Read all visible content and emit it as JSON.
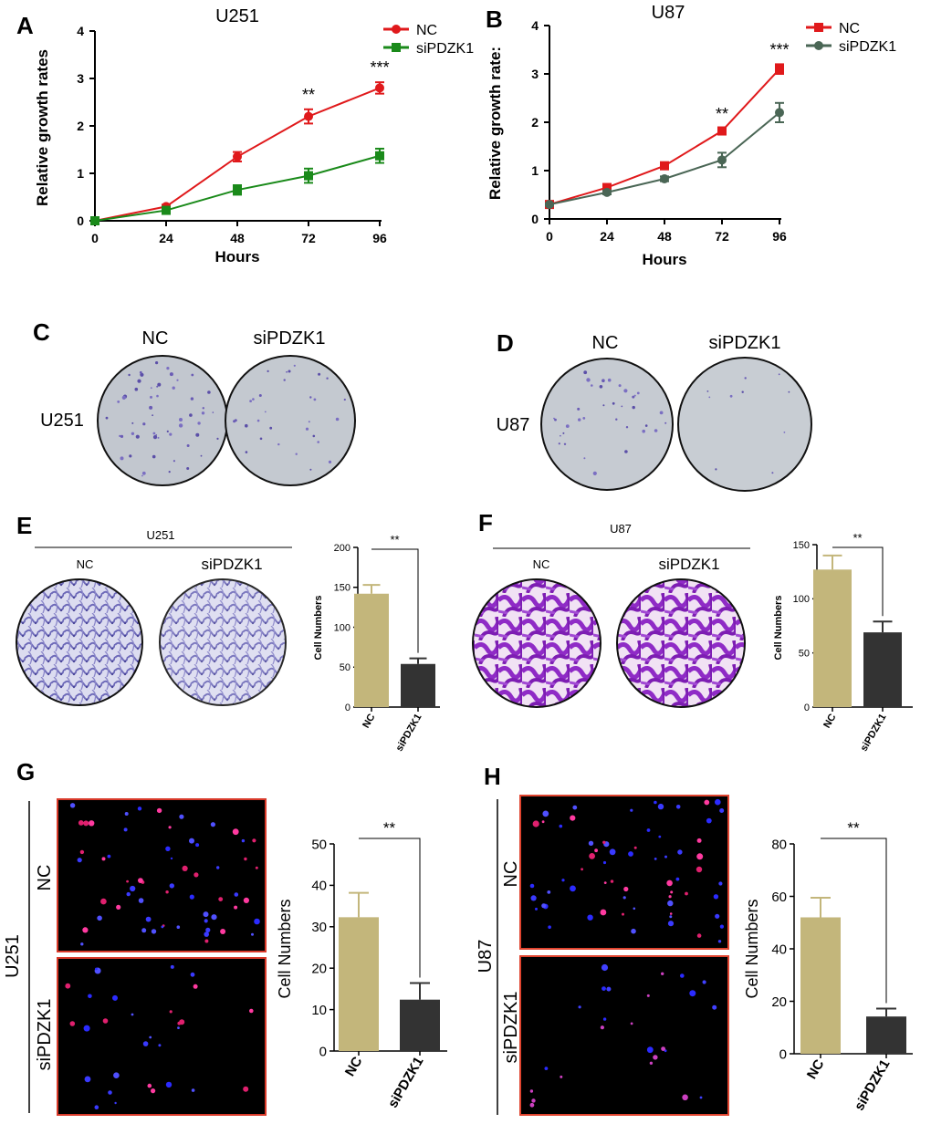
{
  "panel_letters": {
    "A": "A",
    "B": "B",
    "C": "C",
    "D": "D",
    "E": "E",
    "F": "F",
    "G": "G",
    "H": "H"
  },
  "colors": {
    "nc_line": "#e0191b",
    "si_green": "#1a8a1a",
    "si_gray": "#4a6655",
    "bar_nc": "#c3b67b",
    "bar_si": "#333333",
    "micro_border": "#d93a2a",
    "fluor_border": "#e0442f"
  },
  "panel_C": {
    "cell_line": "U251",
    "col_labels": [
      "NC",
      "siPDZK1"
    ]
  },
  "panel_D": {
    "cell_line": "U87",
    "col_labels": [
      "NC",
      "siPDZK1"
    ]
  },
  "panel_E": {
    "cell_line": "U251",
    "col_labels": [
      "NC",
      "siPDZK1"
    ]
  },
  "panel_F": {
    "cell_line": "U87",
    "col_labels": [
      "NC",
      "siPDZK1"
    ]
  },
  "panel_G": {
    "cell_line": "U251",
    "row_labels": [
      "NC",
      "siPDZK1"
    ]
  },
  "panel_H": {
    "cell_line": "U87",
    "row_labels": [
      "NC",
      "siPDZK1"
    ]
  },
  "chart_data": [
    {
      "id": "A",
      "type": "line",
      "title": "U251",
      "xlabel": "Hours",
      "ylabel": "Relative growth rates",
      "x": [
        0,
        24,
        48,
        72,
        96
      ],
      "xlim": [
        0,
        96
      ],
      "ylim": [
        0,
        4
      ],
      "yticks": [
        0,
        1,
        2,
        3,
        4
      ],
      "series": [
        {
          "name": "NC",
          "marker": "circle",
          "color": "#e0191b",
          "values": [
            0,
            0.3,
            1.35,
            2.2,
            2.8
          ],
          "errors": [
            0.02,
            0.04,
            0.1,
            0.15,
            0.12
          ]
        },
        {
          "name": "siPDZK1",
          "marker": "square",
          "color": "#1a8a1a",
          "values": [
            0,
            0.22,
            0.65,
            0.95,
            1.37
          ],
          "errors": [
            0.02,
            0.04,
            0.1,
            0.15,
            0.15
          ]
        }
      ],
      "annotations": [
        {
          "x": 72,
          "text": "**"
        },
        {
          "x": 96,
          "text": "***"
        }
      ]
    },
    {
      "id": "B",
      "type": "line",
      "title": "U87",
      "xlabel": "Hours",
      "ylabel": "Relative growth rate:",
      "x": [
        0,
        24,
        48,
        72,
        96
      ],
      "xlim": [
        0,
        96
      ],
      "ylim": [
        0,
        4
      ],
      "yticks": [
        0,
        1,
        2,
        3,
        4
      ],
      "series": [
        {
          "name": "NC",
          "marker": "square",
          "color": "#e0191b",
          "values": [
            0.3,
            0.65,
            1.1,
            1.82,
            3.1
          ],
          "errors": [
            0.02,
            0.04,
            0.05,
            0.05,
            0.1
          ]
        },
        {
          "name": "siPDZK1",
          "marker": "circle",
          "color": "#4a6655",
          "values": [
            0.3,
            0.55,
            0.83,
            1.22,
            2.2
          ],
          "errors": [
            0.02,
            0.04,
            0.05,
            0.15,
            0.2
          ]
        }
      ],
      "annotations": [
        {
          "x": 72,
          "text": "**"
        },
        {
          "x": 96,
          "text": "***"
        }
      ]
    },
    {
      "id": "E",
      "type": "bar",
      "title": "",
      "xlabel": "",
      "ylabel": "Cell Numbers",
      "categories": [
        "NC",
        "siPDZK1"
      ],
      "values": [
        142,
        54
      ],
      "errors": [
        11,
        7
      ],
      "ylim": [
        0,
        200
      ],
      "yticks": [
        0,
        50,
        100,
        150,
        200
      ],
      "significance": "**"
    },
    {
      "id": "F",
      "type": "bar",
      "title": "",
      "xlabel": "",
      "ylabel": "Cell Numbers",
      "categories": [
        "NC",
        "siPDZK1"
      ],
      "values": [
        127,
        69
      ],
      "errors": [
        13,
        10
      ],
      "ylim": [
        0,
        150
      ],
      "yticks": [
        0,
        50,
        100,
        150
      ],
      "significance": "**"
    },
    {
      "id": "G",
      "type": "bar",
      "title": "",
      "xlabel": "",
      "ylabel": "Cell Numbers",
      "categories": [
        "NC",
        "siPDZK1"
      ],
      "values": [
        32.3,
        12.4
      ],
      "errors": [
        5.9,
        4
      ],
      "ylim": [
        0,
        50
      ],
      "yticks": [
        0,
        10,
        20,
        30,
        40,
        50
      ],
      "significance": "**"
    },
    {
      "id": "H",
      "type": "bar",
      "title": "",
      "xlabel": "",
      "ylabel": "Cell Numbers",
      "categories": [
        "NC",
        "siPDZK1"
      ],
      "values": [
        52,
        14.2
      ],
      "errors": [
        7.5,
        3
      ],
      "ylim": [
        0,
        80
      ],
      "yticks": [
        0,
        20,
        40,
        60,
        80
      ],
      "significance": "**"
    }
  ]
}
